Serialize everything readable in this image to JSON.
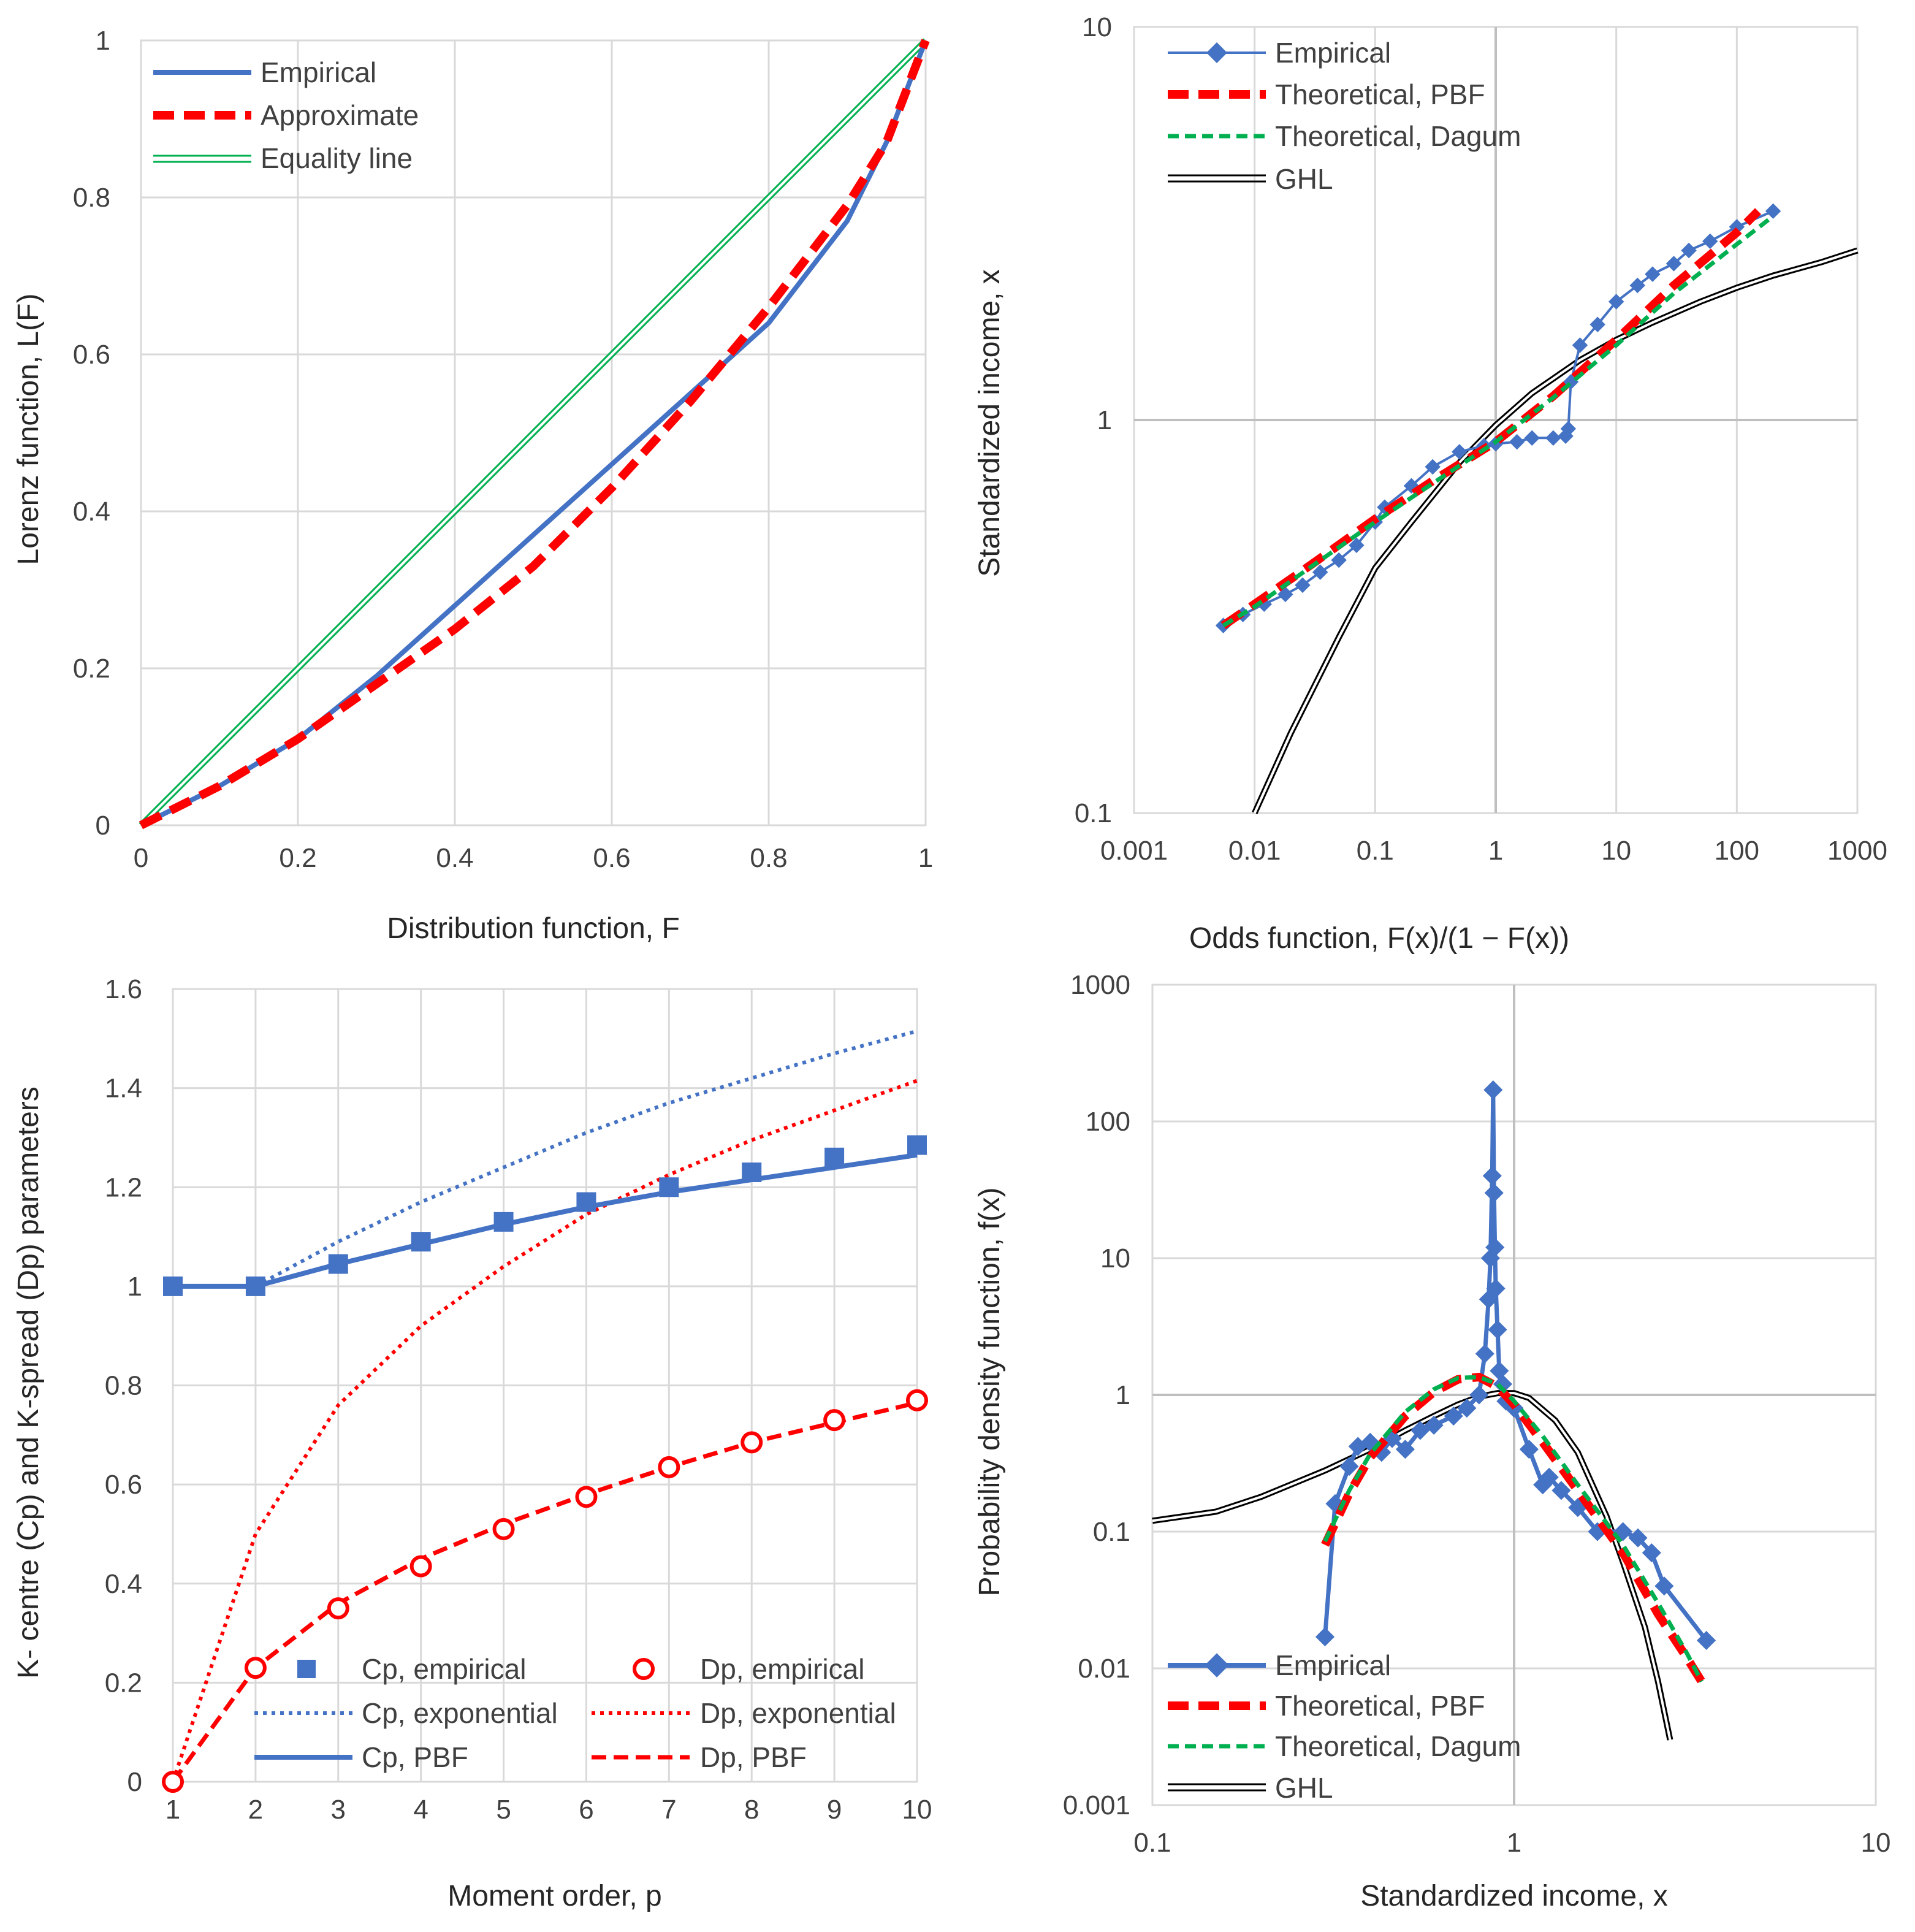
{
  "colors": {
    "blue": "#4472C4",
    "red": "#FF0000",
    "green": "#00B050",
    "black": "#000000",
    "grid": "#D9D9D9"
  },
  "chart_data": [
    {
      "id": "lorenz",
      "type": "line",
      "xlabel": "Distribution function, F",
      "ylabel": "Lorenz function, L(F)",
      "xlim": [
        0,
        1
      ],
      "ylim": [
        0,
        1
      ],
      "xticks": [
        "0",
        "0.2",
        "0.4",
        "0.6",
        "0.8",
        "1"
      ],
      "yticks": [
        "0",
        "0.2",
        "0.4",
        "0.6",
        "0.8",
        "1"
      ],
      "legend": [
        "Empirical",
        "Approximate",
        "Equality line"
      ],
      "legend_position": "top-left",
      "series": [
        {
          "name": "Empirical",
          "x": [
            0,
            0.1,
            0.2,
            0.3,
            0.4,
            0.5,
            0.6,
            0.7,
            0.8,
            0.9,
            0.95,
            1
          ],
          "y": [
            0,
            0.05,
            0.11,
            0.19,
            0.28,
            0.37,
            0.46,
            0.55,
            0.64,
            0.77,
            0.87,
            1
          ]
        },
        {
          "name": "Approximate",
          "x": [
            0,
            0.1,
            0.2,
            0.3,
            0.4,
            0.5,
            0.6,
            0.7,
            0.8,
            0.9,
            0.95,
            1
          ],
          "y": [
            0,
            0.05,
            0.11,
            0.18,
            0.25,
            0.33,
            0.43,
            0.54,
            0.66,
            0.79,
            0.87,
            1
          ]
        },
        {
          "name": "Equality line",
          "x": [
            0,
            1
          ],
          "y": [
            0,
            1
          ]
        }
      ]
    },
    {
      "id": "odds",
      "type": "line",
      "xscale": "log",
      "yscale": "log",
      "xlabel": "Odds function, F(x)/(1 − F(x))",
      "ylabel": "Standardized income, x",
      "xlim": [
        0.001,
        1000
      ],
      "ylim": [
        0.1,
        10
      ],
      "xticks": [
        "0.001",
        "0.01",
        "0.1",
        "1",
        "10",
        "100",
        "1000"
      ],
      "yticks": [
        "0.1",
        "1",
        "10"
      ],
      "legend": [
        "Empirical",
        "Theoretical, PBF",
        "Theoretical, Dagum",
        "GHL"
      ],
      "legend_position": "top-left",
      "series": [
        {
          "name": "Empirical",
          "x": [
            0.0055,
            0.008,
            0.012,
            0.018,
            0.025,
            0.035,
            0.05,
            0.07,
            0.1,
            0.12,
            0.2,
            0.3,
            0.5,
            0.8,
            1,
            1.5,
            2,
            3,
            3.8,
            4,
            4.2,
            5,
            7,
            10,
            15,
            20,
            30,
            40,
            60,
            100,
            200
          ],
          "y": [
            0.3,
            0.32,
            0.34,
            0.36,
            0.38,
            0.41,
            0.44,
            0.48,
            0.55,
            0.6,
            0.68,
            0.76,
            0.83,
            0.86,
            0.87,
            0.88,
            0.9,
            0.9,
            0.91,
            0.95,
            1.25,
            1.55,
            1.75,
            2.0,
            2.2,
            2.35,
            2.5,
            2.7,
            2.85,
            3.1,
            3.4
          ]
        },
        {
          "name": "Theoretical, PBF",
          "x": [
            0.0055,
            0.01,
            0.03,
            0.1,
            0.3,
            1,
            3,
            10,
            30,
            100,
            150
          ],
          "y": [
            0.3,
            0.34,
            0.43,
            0.56,
            0.7,
            0.88,
            1.15,
            1.6,
            2.2,
            3.0,
            3.4
          ]
        },
        {
          "name": "Theoretical, Dagum",
          "x": [
            0.0055,
            0.01,
            0.03,
            0.1,
            0.3,
            1,
            3,
            10,
            30,
            100,
            200
          ],
          "y": [
            0.3,
            0.335,
            0.425,
            0.55,
            0.69,
            0.88,
            1.14,
            1.55,
            2.1,
            2.8,
            3.3
          ]
        },
        {
          "name": "GHL",
          "x": [
            0.01,
            0.02,
            0.05,
            0.1,
            0.2,
            0.5,
            1,
            2,
            5,
            10,
            20,
            50,
            100,
            200,
            500,
            1000
          ],
          "y": [
            0.1,
            0.16,
            0.28,
            0.42,
            0.55,
            0.78,
            0.97,
            1.17,
            1.42,
            1.6,
            1.77,
            2.0,
            2.17,
            2.33,
            2.52,
            2.7
          ]
        }
      ]
    },
    {
      "id": "kparams",
      "type": "line",
      "xlabel": "Moment order, p",
      "ylabel": "K- centre (Cp) and K-spread (Dp) parameters",
      "xlim": [
        1,
        10
      ],
      "ylim": [
        0,
        1.6
      ],
      "xticks": [
        "1",
        "2",
        "3",
        "4",
        "5",
        "6",
        "7",
        "8",
        "9",
        "10"
      ],
      "yticks": [
        "0",
        "0.2",
        "0.4",
        "0.6",
        "0.8",
        "1",
        "1.2",
        "1.4",
        "1.6"
      ],
      "legend": [
        "Cp, empirical",
        "Dp, empirical",
        "Cp, exponential",
        "Dp, exponential",
        "Cp, PBF",
        "Dp, PBF"
      ],
      "legend_position": "bottom",
      "series": [
        {
          "name": "Cp, empirical",
          "x": [
            1,
            2,
            3,
            4,
            5,
            6,
            7,
            8,
            9,
            10
          ],
          "y": [
            1.0,
            1.0,
            1.045,
            1.09,
            1.13,
            1.17,
            1.2,
            1.23,
            1.26,
            1.285
          ]
        },
        {
          "name": "Cp, exponential",
          "x": [
            2,
            3,
            4,
            5,
            6,
            7,
            8,
            9,
            10
          ],
          "y": [
            1.0,
            1.09,
            1.17,
            1.24,
            1.31,
            1.37,
            1.42,
            1.47,
            1.515
          ]
        },
        {
          "name": "Cp, PBF",
          "x": [
            1,
            2,
            3,
            4,
            5,
            6,
            7,
            8,
            9,
            10
          ],
          "y": [
            1.0,
            1.0,
            1.045,
            1.085,
            1.125,
            1.16,
            1.19,
            1.215,
            1.24,
            1.265
          ]
        },
        {
          "name": "Dp, empirical",
          "x": [
            1,
            2,
            3,
            4,
            5,
            6,
            7,
            8,
            9,
            10
          ],
          "y": [
            0.0,
            0.23,
            0.35,
            0.435,
            0.51,
            0.575,
            0.635,
            0.685,
            0.73,
            0.77
          ]
        },
        {
          "name": "Dp, exponential",
          "x": [
            1,
            2,
            3,
            4,
            5,
            6,
            7,
            8,
            9,
            10
          ],
          "y": [
            0.0,
            0.5,
            0.76,
            0.92,
            1.04,
            1.145,
            1.225,
            1.295,
            1.355,
            1.415
          ]
        },
        {
          "name": "Dp, PBF",
          "x": [
            1,
            2,
            3,
            4,
            5,
            6,
            7,
            8,
            9,
            10
          ],
          "y": [
            0.0,
            0.23,
            0.36,
            0.45,
            0.52,
            0.58,
            0.635,
            0.685,
            0.725,
            0.765
          ]
        }
      ]
    },
    {
      "id": "pdf",
      "type": "line",
      "xscale": "log",
      "yscale": "log",
      "xlabel": "Standardized income, x",
      "ylabel": "Probability density function, f(x)",
      "xlim": [
        0.1,
        10
      ],
      "ylim": [
        0.001,
        1000
      ],
      "xticks": [
        "0.1",
        "1",
        "10"
      ],
      "yticks": [
        "0.001",
        "0.01",
        "0.1",
        "1",
        "10",
        "100",
        "1000"
      ],
      "legend": [
        "Empirical",
        "Theoretical, PBF",
        "Theoretical, Dagum",
        "GHL"
      ],
      "legend_position": "bottom-left",
      "series": [
        {
          "name": "Empirical",
          "x": [
            0.3,
            0.32,
            0.35,
            0.37,
            0.4,
            0.43,
            0.46,
            0.5,
            0.55,
            0.6,
            0.68,
            0.74,
            0.8,
            0.83,
            0.85,
            0.86,
            0.87,
            0.875,
            0.88,
            0.885,
            0.89,
            0.9,
            0.91,
            0.93,
            0.95,
            1.0,
            1.1,
            1.2,
            1.25,
            1.35,
            1.5,
            1.7,
            2.0,
            2.2,
            2.4,
            2.6,
            3.4
          ],
          "y": [
            0.017,
            0.16,
            0.3,
            0.42,
            0.45,
            0.38,
            0.48,
            0.4,
            0.55,
            0.6,
            0.7,
            0.8,
            1.0,
            2.0,
            5.0,
            10,
            40,
            170,
            30,
            12,
            6,
            3,
            1.5,
            1.2,
            0.9,
            0.8,
            0.4,
            0.22,
            0.25,
            0.2,
            0.15,
            0.1,
            0.1,
            0.09,
            0.07,
            0.04,
            0.016
          ]
        },
        {
          "name": "Theoretical, PBF",
          "x": [
            0.3,
            0.35,
            0.4,
            0.5,
            0.6,
            0.7,
            0.8,
            0.9,
            1.0,
            1.2,
            1.5,
            2.0,
            2.5,
            3.0,
            3.3
          ],
          "y": [
            0.08,
            0.19,
            0.35,
            0.7,
            1.05,
            1.3,
            1.35,
            1.15,
            0.85,
            0.45,
            0.2,
            0.07,
            0.025,
            0.012,
            0.008
          ]
        },
        {
          "name": "Theoretical, Dagum",
          "x": [
            0.3,
            0.35,
            0.4,
            0.5,
            0.6,
            0.7,
            0.8,
            0.9,
            1.0,
            1.2,
            1.5,
            2.0,
            2.5,
            3.0,
            3.3
          ],
          "y": [
            0.085,
            0.2,
            0.37,
            0.75,
            1.1,
            1.33,
            1.35,
            1.2,
            0.9,
            0.5,
            0.22,
            0.08,
            0.03,
            0.013,
            0.008
          ]
        },
        {
          "name": "GHL",
          "x": [
            0.1,
            0.15,
            0.2,
            0.3,
            0.4,
            0.5,
            0.6,
            0.7,
            0.8,
            0.9,
            1.0,
            1.1,
            1.3,
            1.5,
            1.8,
            2.0,
            2.3,
            2.5,
            2.7
          ],
          "y": [
            0.12,
            0.14,
            0.18,
            0.28,
            0.4,
            0.55,
            0.7,
            0.85,
            0.97,
            1.03,
            1.03,
            0.95,
            0.65,
            0.38,
            0.13,
            0.06,
            0.02,
            0.008,
            0.003
          ]
        }
      ]
    }
  ]
}
